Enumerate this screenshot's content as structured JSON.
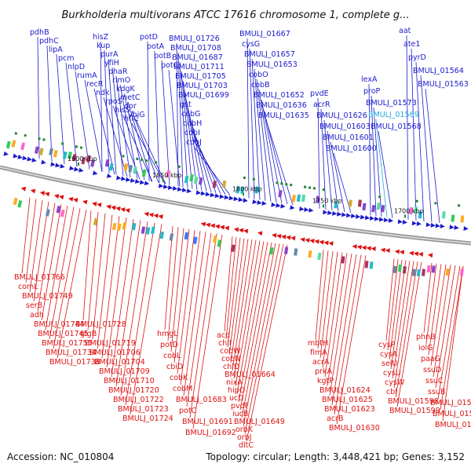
{
  "header": {
    "title": "Burkholderia multivorans ATCC 17616 chromosome 1, complete g..."
  },
  "footer": {
    "accession": "Accession: NC_010804",
    "topology": "Topology: circular; Length: 3,448,421 bp; Genes: 3,152"
  },
  "colors": {
    "forward": "#1a1acc",
    "reverse": "#dd1111",
    "highlight": "#22aadd",
    "backbone": "#999999",
    "tick_text": "#111111"
  },
  "scale_ticks": [
    "1900 kbp",
    "1850 kbp",
    "1800 kbp",
    "1750 kbp",
    "1700 kbp"
  ],
  "forward_labels": [
    "pdhB",
    "pdhC",
    "lipA",
    "pcm",
    "nlpD",
    "rumA",
    "recR",
    "ndk",
    "rpoS",
    "hisS",
    "hflC",
    "hisZ",
    "kup",
    "purA",
    "yfiH",
    "phaR",
    "rimO",
    "kdgK",
    "metC",
    "dor",
    "yhjG",
    "potD",
    "potA",
    "potB",
    "potC",
    "BMULJ_01726",
    "BMULJ_01708",
    "BMULJ_01687",
    "BMULJ_01711",
    "BMULJ_01705",
    "BMULJ_01703",
    "BMULJ_01699",
    "gst",
    "cobG",
    "cobH",
    "cobI",
    "cobJ",
    "BMULJ_01667",
    "cysG",
    "BMULJ_01657",
    "BMULJ_01653",
    "cobO",
    "cobB",
    "BMULJ_01652",
    "BMULJ_01636",
    "BMULJ_01635",
    "pvdE",
    "acrR",
    "BMULJ_01626",
    "BMULJ_01603",
    "BMULJ_01601",
    "BMULJ_01600",
    "lexA",
    "proP",
    "BMULJ_01573",
    "BMULJ_01569",
    "BMULJ_01568",
    "aat",
    "ate1",
    "pyrD",
    "BMULJ_01564",
    "BMULJ_01563"
  ],
  "reverse_labels": [
    "BMULJ_01766",
    "comL",
    "BMULJ_01749",
    "serB",
    "adh",
    "BMULJ_01744",
    "BMULJ_01745",
    "BMULJ_01755",
    "BMULJ_01734",
    "BMULJ_01738",
    "BMULJ_01728",
    "glgB",
    "BMULJ_01719",
    "BMULJ_01706",
    "BMULJ_01704",
    "BMULJ_01709",
    "BMULJ_01710",
    "BMULJ_01720",
    "BMULJ_01722",
    "BMULJ_01723",
    "BMULJ_01724",
    "hmgL",
    "potD",
    "cobL",
    "cbiD",
    "cobK",
    "cobM",
    "BMULJ_01683",
    "potC",
    "BMULJ_01691",
    "BMULJ_01692",
    "acd",
    "chlI",
    "cobW",
    "cobN",
    "chlD",
    "BMULJ_01664",
    "nixA",
    "hipO",
    "ucD",
    "pvdF",
    "iucB",
    "BMULJ_01649",
    "orbK",
    "orbJ",
    "dltC",
    "mbtH",
    "fimA",
    "acrA",
    "prkA",
    "kgtP",
    "BMULJ_01624",
    "BMULJ_01625",
    "BMULJ_01623",
    "acrB",
    "BMULJ_01630",
    "cysP",
    "cysA",
    "selU",
    "cysU",
    "cysW",
    "cbl",
    "BMULJ_01598",
    "BMULJ_01599",
    "phnB",
    "iolG",
    "paaG",
    "ssuD",
    "ssuC",
    "ssuB",
    "BMULJ_01577",
    "BMULJ_01578",
    "BMULJ_01579"
  ]
}
